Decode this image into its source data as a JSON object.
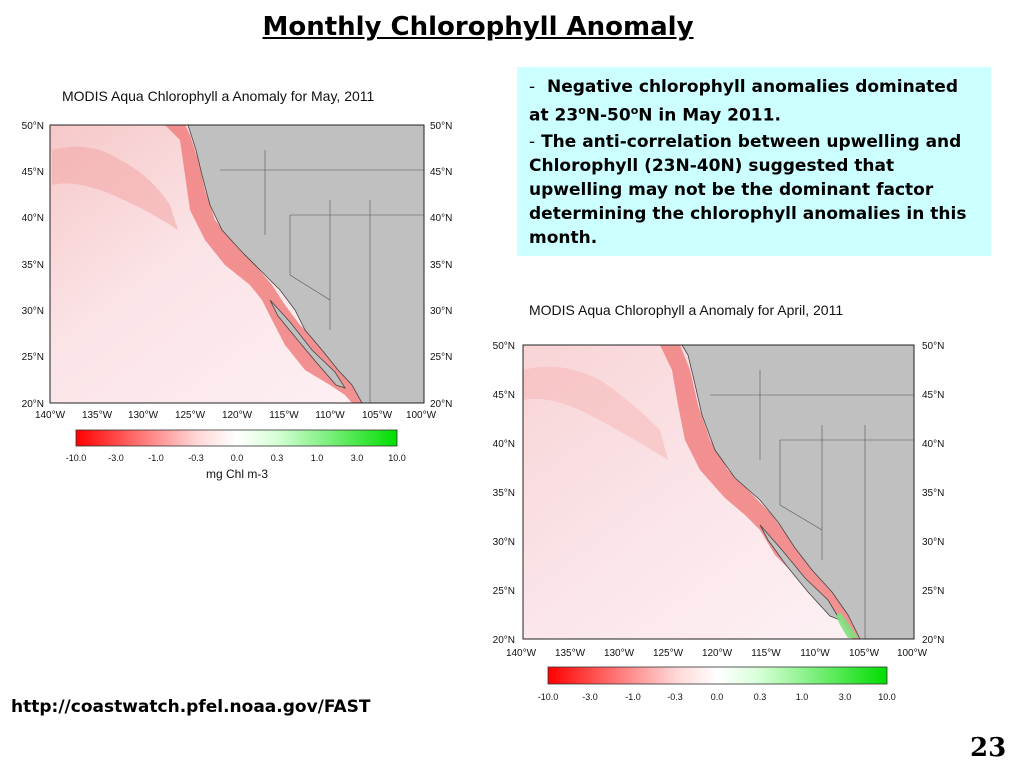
{
  "slide": {
    "title": "Monthly Chlorophyll Anomaly",
    "page_number": "23",
    "source_url": "http://coastwatch.pfel.noaa.gov/FAST"
  },
  "notes": {
    "point1_dash": "-",
    "point1_text_a": "Negative chlorophyll anomalies dominated at 23",
    "point1_sup1": "o",
    "point1_text_b": "N-50",
    "point1_sup2": "o",
    "point1_text_c": "N in May 2011.",
    "point2_dash": "-",
    "point2_text": "The anti-correlation between upwelling and Chlorophyll (23N-40N) suggested that upwelling may not be the dominant factor determining the chlorophyll anomalies in this month."
  },
  "maps": [
    {
      "title": "MODIS Aqua Chlorophyll a Anomaly for May, 2011",
      "lat_labels": [
        "50°N",
        "45°N",
        "40°N",
        "35°N",
        "30°N",
        "25°N",
        "20°N"
      ],
      "lon_labels": [
        "140°W",
        "135°W",
        "130°W",
        "125°W",
        "120°W",
        "115°W",
        "110°W",
        "105°W",
        "100°W"
      ],
      "colorbar_labels": [
        "-10.0",
        "-3.0",
        "-1.0",
        "-0.3",
        "0.0",
        "0.3",
        "1.0",
        "3.0",
        "10.0"
      ],
      "units_label": "mg Chl m-3"
    },
    {
      "title": "MODIS Aqua Chlorophyll a Anomaly for April, 2011",
      "lat_labels": [
        "50°N",
        "45°N",
        "40°N",
        "35°N",
        "30°N",
        "25°N",
        "20°N"
      ],
      "lon_labels": [
        "140°W",
        "135°W",
        "130°W",
        "125°W",
        "120°W",
        "115°W",
        "110°W",
        "105°W",
        "100°W"
      ],
      "colorbar_labels": [
        "-10.0",
        "-3.0",
        "-1.0",
        "-0.3",
        "0.0",
        "0.3",
        "1.0",
        "3.0",
        "10.0"
      ]
    }
  ],
  "colors": {
    "negative": "#ff0000",
    "positive": "#00dd00",
    "land": "#c0c0c0",
    "note_box": "#ccffff"
  }
}
